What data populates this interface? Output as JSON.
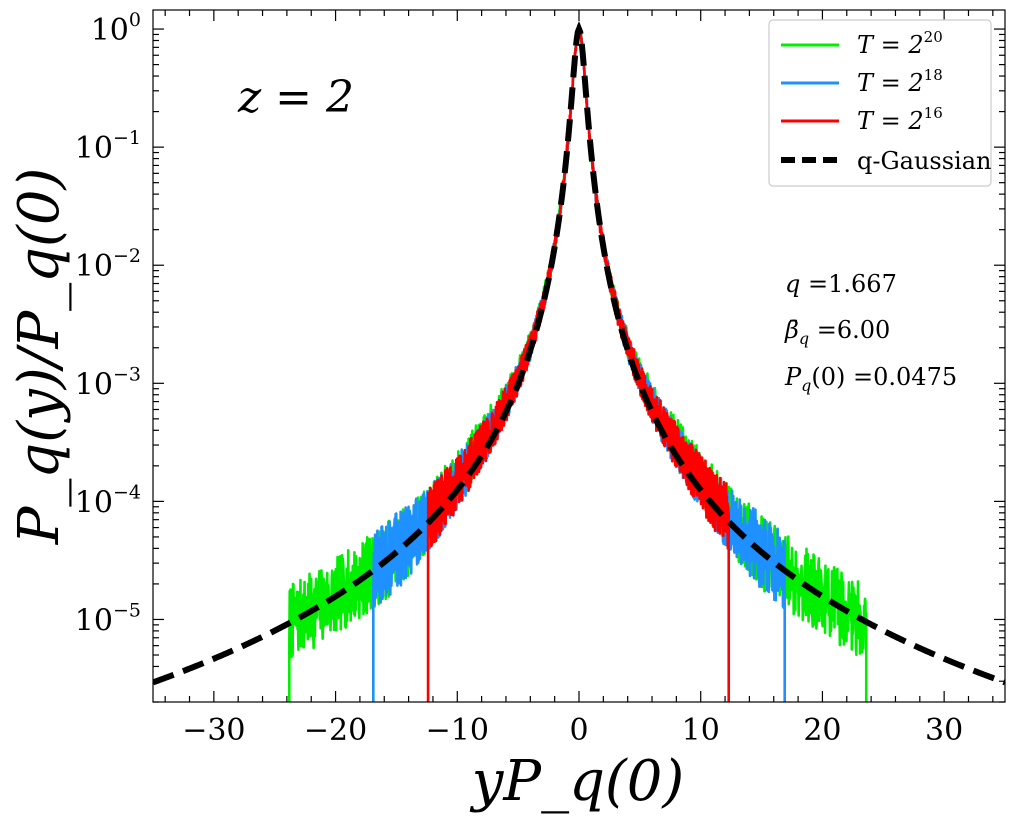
{
  "chart_data": {
    "type": "line",
    "xlabel": "yP_q(0)",
    "ylabel": "P_q(y)/P_q(0)",
    "xlim": [
      -35,
      35
    ],
    "ylim": [
      2e-06,
      1.45
    ],
    "yscale": "log",
    "x_ticks": [
      -30,
      -20,
      -10,
      0,
      10,
      20,
      30
    ],
    "x_tick_labels": [
      "−30",
      "−20",
      "−10",
      "0",
      "10",
      "20",
      "30"
    ],
    "y_ticks": [
      1,
      0.1,
      0.01,
      0.001,
      0.0001,
      1e-05
    ],
    "y_tick_labels": [
      {
        "base": "10",
        "exp": "0"
      },
      {
        "base": "10",
        "exp": "−1"
      },
      {
        "base": "10",
        "exp": "−2"
      },
      {
        "base": "10",
        "exp": "−3"
      },
      {
        "base": "10",
        "exp": "−4"
      },
      {
        "base": "10",
        "exp": "−5"
      }
    ],
    "grid": false,
    "legend_position": "top-right",
    "annotation_panel": "z = 2",
    "parameters": {
      "q": "1.667",
      "beta": "6.00",
      "p0": "0.0475"
    },
    "series": [
      {
        "name": "T = 2^20",
        "name_base": "T = 2",
        "name_exp": "20",
        "color": "#00ee00",
        "cutoff": 23.6,
        "lower_cutoff": -23.8,
        "seed": 7
      },
      {
        "name": "T = 2^18",
        "name_base": "T = 2",
        "name_exp": "18",
        "color": "#1e90ff",
        "cutoff": 16.9,
        "lower_cutoff": -16.9,
        "seed": 13
      },
      {
        "name": "T = 2^16",
        "name_base": "T = 2",
        "name_exp": "16",
        "color": "#ff0000",
        "cutoff": 12.3,
        "lower_cutoff": -12.4,
        "seed": 29
      },
      {
        "name": "q-Gaussian",
        "color": "#000000",
        "dashed": true
      }
    ],
    "q_gaussian": {
      "q": 1.667,
      "beta": 6.0
    }
  }
}
